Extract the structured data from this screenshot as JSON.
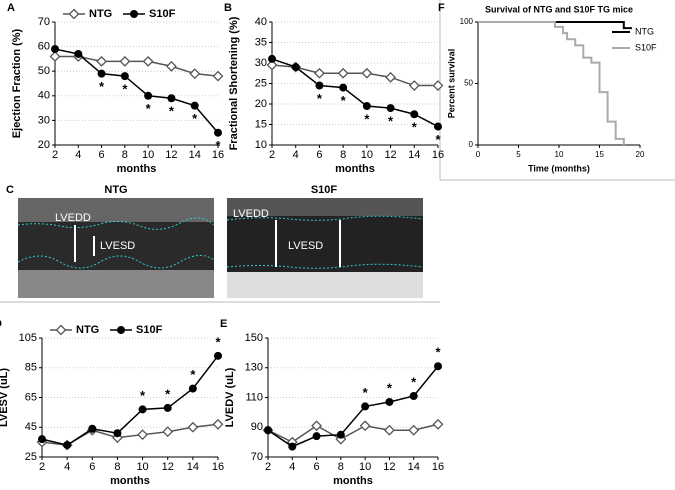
{
  "chart_data": [
    {
      "type": "line",
      "panel": "A",
      "ylabel": "Ejection Fraction (%)",
      "xlabel": "months",
      "x": [
        2,
        4,
        6,
        8,
        10,
        12,
        14,
        16
      ],
      "xlim": [
        2,
        16
      ],
      "xticks": [
        2,
        4,
        6,
        8,
        10,
        12,
        14,
        16
      ],
      "ylim": [
        20,
        70
      ],
      "yticks": [
        20,
        30,
        40,
        50,
        60,
        70
      ],
      "grid": true,
      "legend": "top-left",
      "series": [
        {
          "name": "NTG",
          "color": "#555555",
          "marker": "diamond",
          "values": [
            56,
            56,
            54,
            54,
            54,
            52,
            49,
            48
          ]
        },
        {
          "name": "S10F",
          "color": "#000000",
          "marker": "circle",
          "values": [
            59,
            57,
            49,
            48,
            40,
            39,
            36,
            25
          ]
        }
      ],
      "significance_label": "*",
      "significant_x": [
        6,
        8,
        10,
        12,
        14,
        16
      ]
    },
    {
      "type": "line",
      "panel": "B",
      "ylabel": "Fractional Shortening (%)",
      "xlabel": "months",
      "x": [
        2,
        4,
        6,
        8,
        10,
        12,
        14,
        16
      ],
      "xlim": [
        2,
        16
      ],
      "xticks": [
        2,
        4,
        6,
        8,
        10,
        12,
        14,
        16
      ],
      "ylim": [
        10,
        40
      ],
      "yticks": [
        10,
        15,
        20,
        25,
        30,
        35,
        40
      ],
      "grid": true,
      "series": [
        {
          "name": "NTG",
          "color": "#555555",
          "marker": "diamond",
          "values": [
            29.5,
            29,
            27.5,
            27.5,
            27.5,
            26.5,
            24.5,
            24.5
          ]
        },
        {
          "name": "S10F",
          "color": "#000000",
          "marker": "circle",
          "values": [
            31,
            29,
            24.5,
            24,
            19.5,
            19,
            17.5,
            14.5
          ]
        }
      ],
      "significance_label": "*",
      "significant_x": [
        6,
        8,
        10,
        12,
        14,
        16
      ]
    },
    {
      "type": "step",
      "panel": "F",
      "title": "Survival of NTG and S10F TG mice",
      "ylabel": "Percent survival",
      "xlabel": "Time (months)",
      "xlim": [
        0,
        20
      ],
      "xticks": [
        0,
        5,
        10,
        15,
        20
      ],
      "ylim": [
        0,
        100
      ],
      "yticks": [
        0,
        50,
        100
      ],
      "legend": "top-right",
      "series": [
        {
          "name": "NTG",
          "color": "#000000",
          "x": [
            0,
            18,
            19
          ],
          "values": [
            100,
            95,
            95
          ]
        },
        {
          "name": "S10F",
          "color": "#aaaaaa",
          "x": [
            0,
            9.5,
            10.5,
            11,
            12,
            13,
            14,
            15,
            16,
            17,
            18
          ],
          "values": [
            100,
            96,
            91,
            86,
            81,
            71,
            67,
            43,
            19,
            5,
            0
          ]
        }
      ]
    },
    {
      "type": "line",
      "panel": "D",
      "ylabel": "LVESV (uL)",
      "xlabel": "months",
      "x": [
        2,
        4,
        6,
        8,
        10,
        12,
        14,
        16
      ],
      "xlim": [
        2,
        16
      ],
      "xticks": [
        2,
        4,
        6,
        8,
        10,
        12,
        14,
        16
      ],
      "ylim": [
        25,
        105
      ],
      "yticks": [
        25,
        45,
        65,
        85,
        105
      ],
      "grid": true,
      "legend": "top-left",
      "series": [
        {
          "name": "NTG",
          "color": "#555555",
          "marker": "diamond",
          "values": [
            35,
            33,
            43,
            38,
            40,
            42,
            45,
            47
          ]
        },
        {
          "name": "S10F",
          "color": "#000000",
          "marker": "circle",
          "values": [
            37,
            33,
            44,
            41,
            57,
            58,
            71,
            93
          ]
        }
      ],
      "significance_label": "*",
      "significant_x": [
        10,
        12,
        14,
        16
      ]
    },
    {
      "type": "line",
      "panel": "E",
      "ylabel": "LVEDV (uL)",
      "xlabel": "months",
      "x": [
        2,
        4,
        6,
        8,
        10,
        12,
        14,
        16
      ],
      "xlim": [
        2,
        16
      ],
      "xticks": [
        2,
        4,
        6,
        8,
        10,
        12,
        14,
        16
      ],
      "ylim": [
        70,
        150
      ],
      "yticks": [
        70,
        90,
        110,
        130,
        150
      ],
      "grid": true,
      "series": [
        {
          "name": "NTG",
          "color": "#555555",
          "marker": "diamond",
          "values": [
            88,
            80,
            91,
            82,
            91,
            88,
            88,
            92
          ]
        },
        {
          "name": "S10F",
          "color": "#000000",
          "marker": "circle",
          "values": [
            88,
            77,
            84,
            85,
            104,
            107,
            111,
            131
          ]
        }
      ],
      "significance_label": "*",
      "significant_x": [
        10,
        12,
        14,
        16
      ]
    }
  ],
  "echo": {
    "panel": "C",
    "images": [
      {
        "title": "NTG",
        "labels": [
          "LVEDD",
          "LVESD"
        ]
      },
      {
        "title": "S10F",
        "labels": [
          "LVEDD",
          "LVESD"
        ]
      }
    ]
  }
}
